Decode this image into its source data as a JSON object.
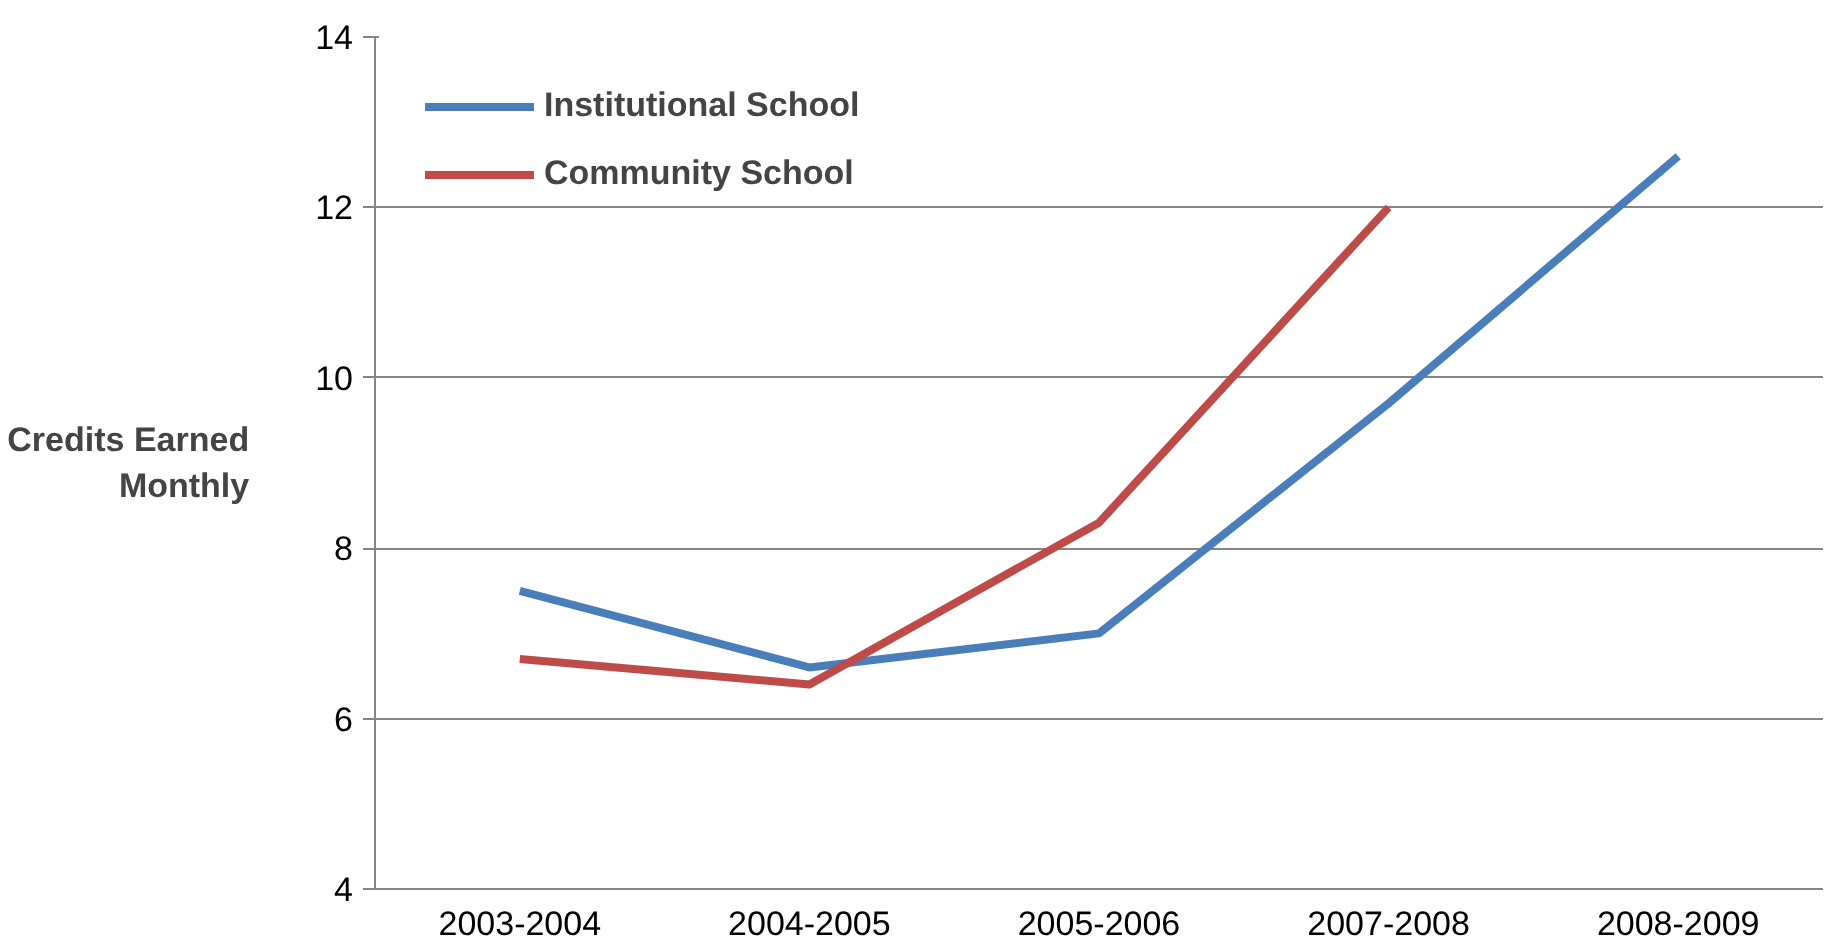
{
  "chart_data": {
    "type": "line",
    "ylabel": "Credits Earned Monthly",
    "categories": [
      "2003-2004",
      "2004-2005",
      "2005-2006",
      "2007-2008",
      "2008-2009"
    ],
    "series": [
      {
        "name": "Institutional School",
        "color": "#4a7ebb",
        "values": [
          7.5,
          6.6,
          7.0,
          9.7,
          12.6
        ]
      },
      {
        "name": "Community School",
        "color": "#be4b48",
        "values": [
          6.7,
          6.4,
          8.3,
          12.0,
          null
        ]
      }
    ],
    "ylim": [
      4,
      14
    ],
    "yticks": [
      4,
      6,
      8,
      10,
      12,
      14
    ],
    "grid": "y",
    "legend": "top left",
    "marker": "none",
    "line_style": "solid"
  }
}
